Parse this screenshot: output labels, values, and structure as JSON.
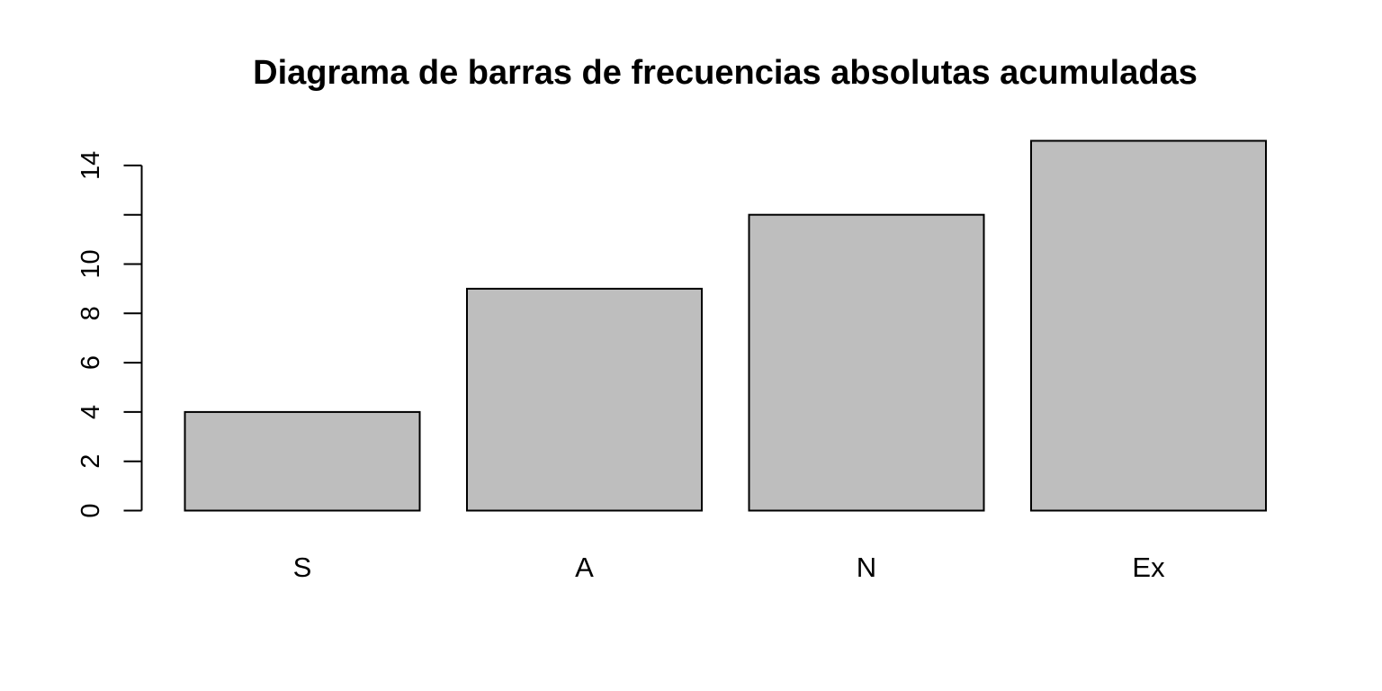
{
  "chart_data": {
    "type": "bar",
    "title": "Diagrama de barras de frecuencias absolutas acumuladas",
    "xlabel": "",
    "ylabel": "",
    "categories": [
      "S",
      "A",
      "N",
      "Ex"
    ],
    "values": [
      4,
      9,
      12,
      15
    ],
    "ylim": [
      0,
      15
    ],
    "y_ticks": [
      0,
      2,
      4,
      6,
      8,
      10,
      12,
      14
    ],
    "y_tick_labels": [
      "0",
      "2",
      "4",
      "6",
      "8",
      "10",
      "",
      "14"
    ],
    "grid": false,
    "legend": "none",
    "colors": {
      "bar_fill": "#bebebe",
      "bar_stroke": "#000000",
      "axis": "#000000",
      "background": "#ffffff"
    }
  }
}
